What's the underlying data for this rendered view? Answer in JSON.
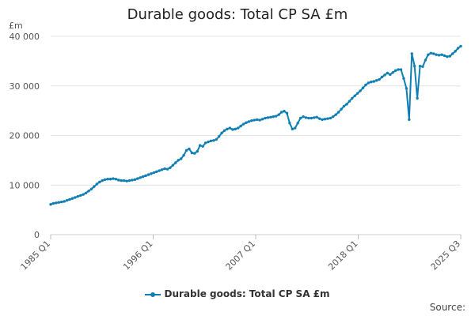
{
  "chart_data": {
    "type": "line",
    "title": "Durable goods: Total CP SA £m",
    "ylabel": "£m",
    "xlabel": "",
    "ylim": [
      0,
      40000
    ],
    "y_ticks": [
      {
        "value": 0,
        "label": "0"
      },
      {
        "value": 10000,
        "label": "10 000"
      },
      {
        "value": 20000,
        "label": "20 000"
      },
      {
        "value": 30000,
        "label": "30 000"
      },
      {
        "value": 40000,
        "label": "40 000"
      }
    ],
    "x_ticks": [
      "1985 Q1",
      "1996 Q1",
      "2007 Q1",
      "2018 Q1",
      "2025 Q3"
    ],
    "grid": true,
    "legend_position": "bottom",
    "color": "#0f7fb3",
    "series": [
      {
        "name": "Durable goods: Total CP SA £m",
        "values": [
          6100,
          6300,
          6400,
          6500,
          6600,
          6700,
          6900,
          7100,
          7300,
          7500,
          7700,
          7900,
          8100,
          8400,
          8800,
          9200,
          9700,
          10200,
          10600,
          10900,
          11100,
          11200,
          11200,
          11300,
          11200,
          11000,
          10900,
          10900,
          10800,
          10900,
          11000,
          11100,
          11300,
          11500,
          11700,
          11900,
          12100,
          12300,
          12500,
          12700,
          12900,
          13100,
          13300,
          13200,
          13500,
          14000,
          14500,
          15000,
          15300,
          16000,
          17000,
          17300,
          16500,
          16400,
          16800,
          18000,
          17800,
          18500,
          18700,
          18900,
          19000,
          19200,
          19800,
          20500,
          21000,
          21300,
          21500,
          21200,
          21300,
          21500,
          21900,
          22300,
          22600,
          22800,
          23000,
          23100,
          23200,
          23100,
          23300,
          23500,
          23600,
          23700,
          23800,
          23900,
          24200,
          24700,
          24900,
          24500,
          22500,
          21300,
          21500,
          22500,
          23500,
          23800,
          23600,
          23500,
          23500,
          23600,
          23700,
          23400,
          23200,
          23300,
          23400,
          23500,
          23800,
          24200,
          24700,
          25300,
          25900,
          26300,
          26900,
          27500,
          28000,
          28500,
          29000,
          29600,
          30200,
          30600,
          30800,
          30900,
          31100,
          31300,
          31800,
          32200,
          32600,
          32300,
          32700,
          33100,
          33300,
          33300,
          31500,
          29500,
          23200,
          36500,
          34000,
          27500,
          34000,
          33900,
          35200,
          36300,
          36600,
          36500,
          36300,
          36200,
          36300,
          36100,
          35900,
          36000,
          36500,
          37000,
          37600,
          38000
        ]
      }
    ],
    "source_label": "Source:"
  }
}
